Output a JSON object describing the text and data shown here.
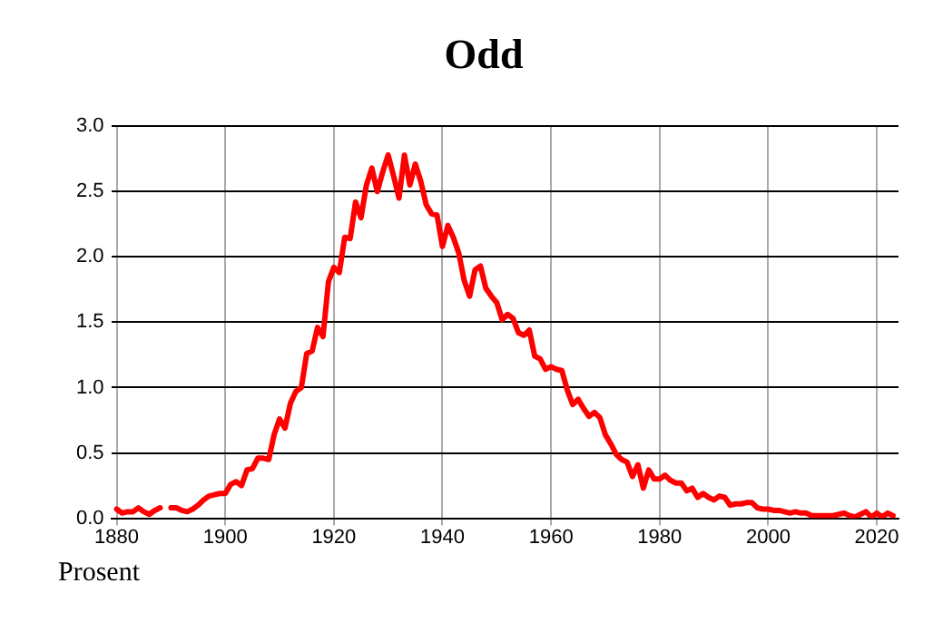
{
  "chart_data": {
    "type": "line",
    "title": "Odd",
    "ylabel": "Prosent",
    "x": [
      1880,
      1881,
      1882,
      1883,
      1884,
      1885,
      1886,
      1887,
      1888,
      1889,
      1890,
      1891,
      1892,
      1893,
      1894,
      1895,
      1896,
      1897,
      1898,
      1899,
      1900,
      1901,
      1902,
      1903,
      1904,
      1905,
      1906,
      1907,
      1908,
      1909,
      1910,
      1911,
      1912,
      1913,
      1914,
      1915,
      1916,
      1917,
      1918,
      1919,
      1920,
      1921,
      1922,
      1923,
      1924,
      1925,
      1926,
      1927,
      1928,
      1929,
      1930,
      1931,
      1932,
      1933,
      1934,
      1935,
      1936,
      1937,
      1938,
      1939,
      1940,
      1941,
      1942,
      1943,
      1944,
      1945,
      1946,
      1947,
      1948,
      1949,
      1950,
      1951,
      1952,
      1953,
      1954,
      1955,
      1956,
      1957,
      1958,
      1959,
      1960,
      1961,
      1962,
      1963,
      1964,
      1965,
      1966,
      1967,
      1968,
      1969,
      1970,
      1971,
      1972,
      1973,
      1974,
      1975,
      1976,
      1977,
      1978,
      1979,
      1980,
      1981,
      1982,
      1983,
      1984,
      1985,
      1986,
      1987,
      1988,
      1989,
      1990,
      1991,
      1992,
      1993,
      1994,
      1995,
      1996,
      1997,
      1998,
      1999,
      2000,
      2001,
      2002,
      2003,
      2004,
      2005,
      2006,
      2007,
      2008,
      2009,
      2010,
      2011,
      2012,
      2013,
      2014,
      2015,
      2016,
      2017,
      2018,
      2019,
      2020,
      2021,
      2022,
      2023
    ],
    "series": [
      {
        "color": "#ff0000",
        "values": [
          0.07,
          0.04,
          0.05,
          0.05,
          0.08,
          0.05,
          0.03,
          0.06,
          0.08,
          null,
          0.08,
          0.08,
          0.06,
          0.05,
          0.07,
          0.1,
          0.14,
          0.17,
          0.18,
          0.19,
          0.19,
          0.26,
          0.28,
          0.25,
          0.37,
          0.38,
          0.46,
          0.46,
          0.45,
          0.64,
          0.76,
          0.69,
          0.88,
          0.97,
          1.0,
          1.26,
          1.28,
          1.46,
          1.39,
          1.81,
          1.92,
          1.88,
          2.15,
          2.14,
          2.42,
          2.3,
          2.55,
          2.68,
          2.5,
          2.65,
          2.78,
          2.62,
          2.45,
          2.78,
          2.55,
          2.71,
          2.58,
          2.4,
          2.33,
          2.32,
          2.08,
          2.24,
          2.15,
          2.03,
          1.82,
          1.7,
          1.9,
          1.93,
          1.76,
          1.7,
          1.65,
          1.52,
          1.56,
          1.53,
          1.42,
          1.4,
          1.44,
          1.24,
          1.22,
          1.14,
          1.16,
          1.14,
          1.13,
          0.98,
          0.87,
          0.91,
          0.84,
          0.78,
          0.81,
          0.77,
          0.64,
          0.57,
          0.49,
          0.45,
          0.43,
          0.32,
          0.41,
          0.23,
          0.37,
          0.3,
          0.3,
          0.33,
          0.29,
          0.27,
          0.27,
          0.21,
          0.23,
          0.16,
          0.19,
          0.16,
          0.14,
          0.17,
          0.16,
          0.1,
          0.11,
          0.11,
          0.12,
          0.12,
          0.08,
          0.07,
          0.07,
          0.06,
          0.06,
          0.05,
          0.04,
          0.05,
          0.04,
          0.04,
          0.02,
          0.02,
          0.02,
          0.02,
          0.02,
          0.03,
          0.04,
          0.02,
          0.01,
          0.03,
          0.05,
          0.01,
          0.04,
          0.01,
          0.04,
          0.02
        ]
      }
    ],
    "xlim": [
      1879,
      2024
    ],
    "xticks": [
      1880,
      1900,
      1920,
      1940,
      1960,
      1980,
      2000,
      2020
    ],
    "ylim": [
      0,
      3
    ],
    "yticks": [
      {
        "value": 0,
        "label": "0.0"
      },
      {
        "value": 0.5,
        "label": "0.5"
      },
      {
        "value": 1,
        "label": "1.0"
      },
      {
        "value": 1.5,
        "label": "1.5"
      },
      {
        "value": 2,
        "label": "2.0"
      },
      {
        "value": 2.5,
        "label": "2.5"
      },
      {
        "value": 3,
        "label": "3.0"
      }
    ],
    "grid": true,
    "legend": false,
    "marker": "none",
    "line_style": "solid"
  }
}
